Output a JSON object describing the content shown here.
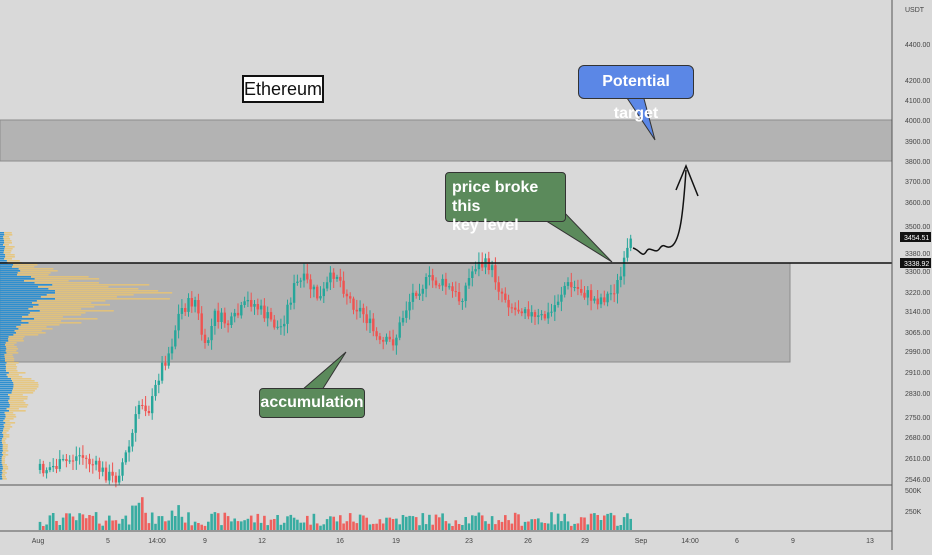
{
  "chart_data": {
    "type": "candlestick",
    "title": "Ethereum",
    "currency_label": "USDT",
    "price_axis": {
      "ticks": [
        "4400.00",
        "4200.00",
        "4100.00",
        "4000.00",
        "3900.00",
        "3800.00",
        "3700.00",
        "3600.00",
        "3500.00",
        "3380.00",
        "3300.00",
        "3220.00",
        "3140.00",
        "3065.00",
        "2990.00",
        "2910.00",
        "2830.00",
        "2750.00",
        "2680.00",
        "2610.00",
        "2546.00"
      ],
      "current_price": "3454.51",
      "key_level": "3338.92"
    },
    "time_axis": {
      "ticks": [
        "Aug",
        "5",
        "14:00",
        "9",
        "12",
        "16",
        "19",
        "23",
        "26",
        "29",
        "Sep",
        "14:00",
        "6",
        "9",
        "13"
      ]
    },
    "volume_axis": {
      "ticks": [
        "500K",
        "250K"
      ]
    },
    "zones": [
      {
        "name": "accumulation range",
        "from_price": 2960,
        "to_price": 3338.92
      },
      {
        "name": "target zone",
        "from_price": 3800,
        "to_price": 4000
      }
    ],
    "annotations": {
      "target": "Potential target",
      "breakout_line1": "price broke this",
      "breakout_line2": "key level",
      "range": "accumulation"
    },
    "colors": {
      "background": "#d9d9d9",
      "up_candle": "#26a69a",
      "down_candle": "#ef5350",
      "zone_fill": "#b3b3b3",
      "profile_blue": "#2f8fcf",
      "profile_yellow": "#e8c373",
      "green_label": "#5b8a5b",
      "blue_label": "#5b87e6"
    }
  }
}
